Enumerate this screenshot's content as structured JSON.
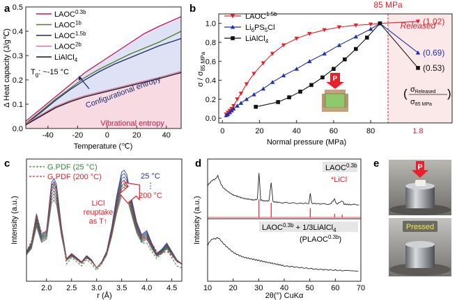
{
  "colors": {
    "red": "#e8202a",
    "blue": "#1f2fb0",
    "black": "#111111",
    "green": "#2e8b3a",
    "magenta": "#c8144e",
    "pink": "#d96f9a",
    "navy": "#1b2a6b",
    "olive": "#4f7a2a",
    "config_fill": "#dfe2f4",
    "vib_fill": "#f8dbe2",
    "released_fill": "#fbe9ea"
  },
  "panels": {
    "a": {
      "letter": "a"
    },
    "b": {
      "letter": "b"
    },
    "c": {
      "letter": "c"
    },
    "d": {
      "letter": "d"
    },
    "e": {
      "letter": "e"
    }
  },
  "chart_data": [
    {
      "id": "a",
      "type": "line",
      "xlabel": "Temperature (℃)",
      "ylabel": "Δ Heat capacity (J/g℃)",
      "xlim": [
        -55,
        50
      ],
      "ylim": [
        0,
        0.5
      ],
      "xticks": [
        -40,
        -20,
        0,
        20,
        40
      ],
      "yticks": [
        0.0,
        0.1,
        0.2,
        0.3,
        0.4,
        0.5
      ],
      "legend": [
        {
          "label": "LAOC",
          "sup": "0.3b",
          "color": "#c8144e"
        },
        {
          "label": "LAOC",
          "sup": "1b",
          "color": "#4f7a2a"
        },
        {
          "label": "LAOC",
          "sup": "1.5b",
          "color": "#1b2a6b"
        },
        {
          "label": "LAOC",
          "sup": "2b",
          "color": "#d96f9a"
        },
        {
          "label": "LiAlCl",
          "sub": "4",
          "color": "#111111"
        }
      ],
      "series": [
        {
          "name": "LAOC0.3b",
          "color": "#c8144e",
          "x": [
            -55,
            -45,
            -35,
            -25,
            -15,
            -5,
            5,
            15,
            25,
            35,
            50
          ],
          "y": [
            0.03,
            0.08,
            0.13,
            0.18,
            0.23,
            0.27,
            0.31,
            0.35,
            0.39,
            0.42,
            0.46
          ]
        },
        {
          "name": "LAOC1b",
          "color": "#4f7a2a",
          "x": [
            -55,
            -45,
            -35,
            -25,
            -15,
            -5,
            5,
            15,
            25,
            35,
            50
          ],
          "y": [
            0.02,
            0.07,
            0.12,
            0.165,
            0.21,
            0.245,
            0.275,
            0.305,
            0.33,
            0.355,
            0.4
          ]
        },
        {
          "name": "LAOC1.5b",
          "color": "#1b2a6b",
          "x": [
            -55,
            -45,
            -35,
            -25,
            -15,
            -5,
            5,
            15,
            25,
            35,
            50
          ],
          "y": [
            0.02,
            0.065,
            0.115,
            0.16,
            0.2,
            0.235,
            0.265,
            0.29,
            0.315,
            0.34,
            0.37
          ]
        },
        {
          "name": "LAOC2b",
          "color": "#d96f9a",
          "x": [
            -55,
            -45,
            -35,
            -25,
            -15,
            -5,
            5,
            15,
            25,
            35,
            50
          ],
          "y": [
            0.02,
            0.055,
            0.09,
            0.115,
            0.135,
            0.15,
            0.165,
            0.18,
            0.195,
            0.21,
            0.235
          ]
        },
        {
          "name": "LiAlCl4",
          "color": "#111111",
          "x": [
            -55,
            -45,
            -35,
            -25,
            -15,
            -5,
            5,
            15,
            25,
            35,
            50
          ],
          "y": [
            0.015,
            0.05,
            0.085,
            0.11,
            0.13,
            0.145,
            0.16,
            0.175,
            0.19,
            0.205,
            0.23
          ]
        }
      ],
      "annotations": [
        {
          "text": "T",
          "sub": "g",
          "rest": ": ~-15 °C"
        },
        {
          "text": "Configurational entropy"
        },
        {
          "text": "Vibrational entropy"
        }
      ]
    },
    {
      "id": "b",
      "type": "line",
      "xlabel": "Normal pressure (MPa)",
      "ylabel": "σ / σ",
      "ylabel_sub": "85 MPa",
      "xlim": [
        -2,
        95
      ],
      "ylim": [
        -0.05,
        1.1
      ],
      "xticks": [
        0,
        20,
        40,
        60,
        80
      ],
      "yticks": [
        0.0,
        0.2,
        0.4,
        0.6,
        0.8,
        1.0
      ],
      "released_tick": "1.8",
      "top_label": "85 MPa",
      "released_label": "Released",
      "legend": [
        {
          "label": "LAOC",
          "sup": "1.5b",
          "color": "#e8202a",
          "marker": "triangle-down"
        },
        {
          "label": "Li",
          "sub": "6",
          "rest": "PS",
          "sub2": "5",
          "rest2": "Cl",
          "color": "#1f2fb0",
          "marker": "triangle-up"
        },
        {
          "label": "LiAlCl",
          "sub": "4",
          "color": "#111111",
          "marker": "square"
        }
      ],
      "series": [
        {
          "name": "LAOC1.5b",
          "color": "#e8202a",
          "marker": "triangle-down",
          "x": [
            2,
            3,
            4,
            5,
            6,
            8,
            10,
            13,
            17,
            22,
            27,
            33,
            40,
            47,
            55,
            63,
            72,
            80,
            85
          ],
          "y": [
            0.04,
            0.06,
            0.08,
            0.1,
            0.13,
            0.2,
            0.26,
            0.36,
            0.47,
            0.58,
            0.68,
            0.77,
            0.84,
            0.89,
            0.93,
            0.96,
            0.98,
            0.99,
            1.0
          ],
          "released": 1.02,
          "released_label": "(1.02)"
        },
        {
          "name": "Li6PS5Cl",
          "color": "#1f2fb0",
          "marker": "triangle-up",
          "x": [
            2,
            3,
            4,
            5,
            6,
            8,
            10,
            13,
            17,
            22,
            27,
            33,
            40,
            47,
            55,
            63,
            72,
            80,
            85
          ],
          "y": [
            0.03,
            0.04,
            0.06,
            0.08,
            0.1,
            0.13,
            0.16,
            0.2,
            0.25,
            0.31,
            0.38,
            0.45,
            0.52,
            0.6,
            0.68,
            0.77,
            0.86,
            0.94,
            1.0
          ],
          "released": 0.69,
          "released_label": "(0.69)"
        },
        {
          "name": "LiAlCl4",
          "color": "#111111",
          "marker": "square",
          "x": [
            18,
            30,
            36,
            42,
            48,
            54,
            60,
            66,
            72,
            78,
            85
          ],
          "y": [
            0.12,
            0.17,
            0.22,
            0.28,
            0.35,
            0.43,
            0.52,
            0.62,
            0.73,
            0.85,
            1.0
          ],
          "released": 0.53,
          "released_label": "(0.53)"
        }
      ],
      "ratio_num": "σ",
      "ratio_num_sub": "Released",
      "ratio_den": "σ",
      "ratio_den_sub": "85 MPa",
      "inset_label": "P"
    },
    {
      "id": "c",
      "type": "line",
      "xlabel": "r (Å)",
      "ylabel": "Intensity (a.u.)",
      "xlim": [
        1.6,
        4.7
      ],
      "xticks": [
        2.0,
        2.5,
        3.0,
        3.5,
        4.0,
        4.5
      ],
      "legend": [
        {
          "label": "G.PDF (25 °C)",
          "color": "#2e8b3a",
          "dash": true
        },
        {
          "label": "G.PDF (200 °C)",
          "color": "#e8202a",
          "dash": true
        }
      ],
      "temp_top": "25 °C",
      "temp_dots": "⋮",
      "temp_bottom": "200 °C",
      "note_lines": [
        "LiCl",
        "reuptake",
        "as T↑"
      ],
      "x": [
        1.6,
        1.7,
        1.8,
        1.9,
        2.0,
        2.1,
        2.15,
        2.2,
        2.3,
        2.4,
        2.5,
        2.6,
        2.7,
        2.8,
        2.9,
        3.0,
        3.1,
        3.2,
        3.3,
        3.4,
        3.5,
        3.55,
        3.6,
        3.7,
        3.8,
        3.9,
        4.0,
        4.1,
        4.2,
        4.3,
        4.4,
        4.5,
        4.6,
        4.7
      ],
      "base": [
        0.22,
        0.3,
        0.58,
        0.38,
        0.42,
        0.88,
        0.92,
        0.86,
        0.45,
        0.15,
        0.2,
        0.16,
        0.12,
        0.18,
        0.14,
        0.06,
        0.12,
        0.22,
        0.45,
        0.75,
        0.98,
        1.0,
        0.96,
        0.72,
        0.5,
        0.38,
        0.42,
        0.3,
        0.2,
        0.24,
        0.3,
        0.22,
        0.14,
        0.1
      ],
      "gpdf25": [
        0.22,
        0.3,
        0.56,
        0.36,
        0.38,
        0.8,
        0.86,
        0.8,
        0.4,
        0.1,
        0.16,
        0.12,
        0.08,
        0.14,
        0.1,
        0.04,
        0.1,
        0.18,
        0.36,
        0.62,
        0.84,
        0.86,
        0.82,
        0.6,
        0.4,
        0.3,
        0.3,
        0.22,
        0.15,
        0.2,
        0.24,
        0.16,
        0.08,
        0.06
      ],
      "gpdf200": [
        0.22,
        0.32,
        0.58,
        0.4,
        0.4,
        0.84,
        0.88,
        0.82,
        0.42,
        0.14,
        0.2,
        0.14,
        0.1,
        0.16,
        0.12,
        0.06,
        0.1,
        0.2,
        0.4,
        0.66,
        0.88,
        0.9,
        0.86,
        0.66,
        0.46,
        0.36,
        0.34,
        0.3,
        0.22,
        0.2,
        0.22,
        0.18,
        0.12,
        0.1
      ]
    },
    {
      "id": "d",
      "type": "line",
      "xlabel": "2θ(°) CuKα",
      "ylabel": "Intensity (a.u.)",
      "xlim": [
        10,
        70
      ],
      "xticks": [
        10,
        20,
        30,
        40,
        50,
        60,
        70
      ],
      "top_label": "LAOC",
      "top_label_sup": "0.3b",
      "licl_label": "*LiCl",
      "bottom_label_a": "LAOC",
      "bottom_label_a_sup": "0.3b",
      "bottom_label_b": " + 1/3LiAlCl",
      "bottom_label_b_sub": "4",
      "bottom_label_c": "(PLAOC",
      "bottom_label_c_sup": "0.3b",
      "bottom_label_c_end": ")",
      "licl_peaks": [
        30.1,
        34.9,
        50.2,
        59.7,
        62.7
      ],
      "licl_heights": [
        1.0,
        0.8,
        0.5,
        0.2,
        0.15
      ],
      "top_pattern": {
        "x": [
          10,
          11,
          12,
          13,
          14,
          15,
          16,
          18,
          20,
          22,
          24,
          26,
          28,
          29.5,
          30.1,
          30.8,
          32,
          34,
          34.9,
          35.6,
          38,
          42,
          46,
          49.6,
          50.2,
          50.8,
          54,
          58,
          59.7,
          60.5,
          62.7,
          63.5,
          66,
          70
        ],
        "y": [
          0.55,
          0.62,
          0.68,
          0.7,
          0.78,
          0.62,
          0.5,
          0.4,
          0.32,
          0.28,
          0.24,
          0.22,
          0.2,
          0.22,
          0.85,
          0.2,
          0.18,
          0.18,
          0.62,
          0.16,
          0.14,
          0.13,
          0.12,
          0.12,
          0.35,
          0.12,
          0.11,
          0.1,
          0.22,
          0.1,
          0.18,
          0.1,
          0.09,
          0.09
        ]
      },
      "bottom_pattern": {
        "x": [
          10,
          11,
          12,
          13,
          14,
          15,
          16,
          18,
          20,
          22,
          24,
          26,
          28,
          30,
          32,
          34,
          36,
          38,
          40,
          44,
          48,
          52,
          56,
          60,
          64,
          70
        ],
        "y": [
          0.6,
          0.68,
          0.72,
          0.72,
          0.74,
          0.7,
          0.64,
          0.55,
          0.47,
          0.42,
          0.38,
          0.36,
          0.34,
          0.32,
          0.3,
          0.28,
          0.26,
          0.24,
          0.22,
          0.2,
          0.18,
          0.16,
          0.15,
          0.14,
          0.13,
          0.12
        ]
      }
    }
  ],
  "photos": {
    "top_label": "P",
    "bottom_label": "Pressed"
  }
}
